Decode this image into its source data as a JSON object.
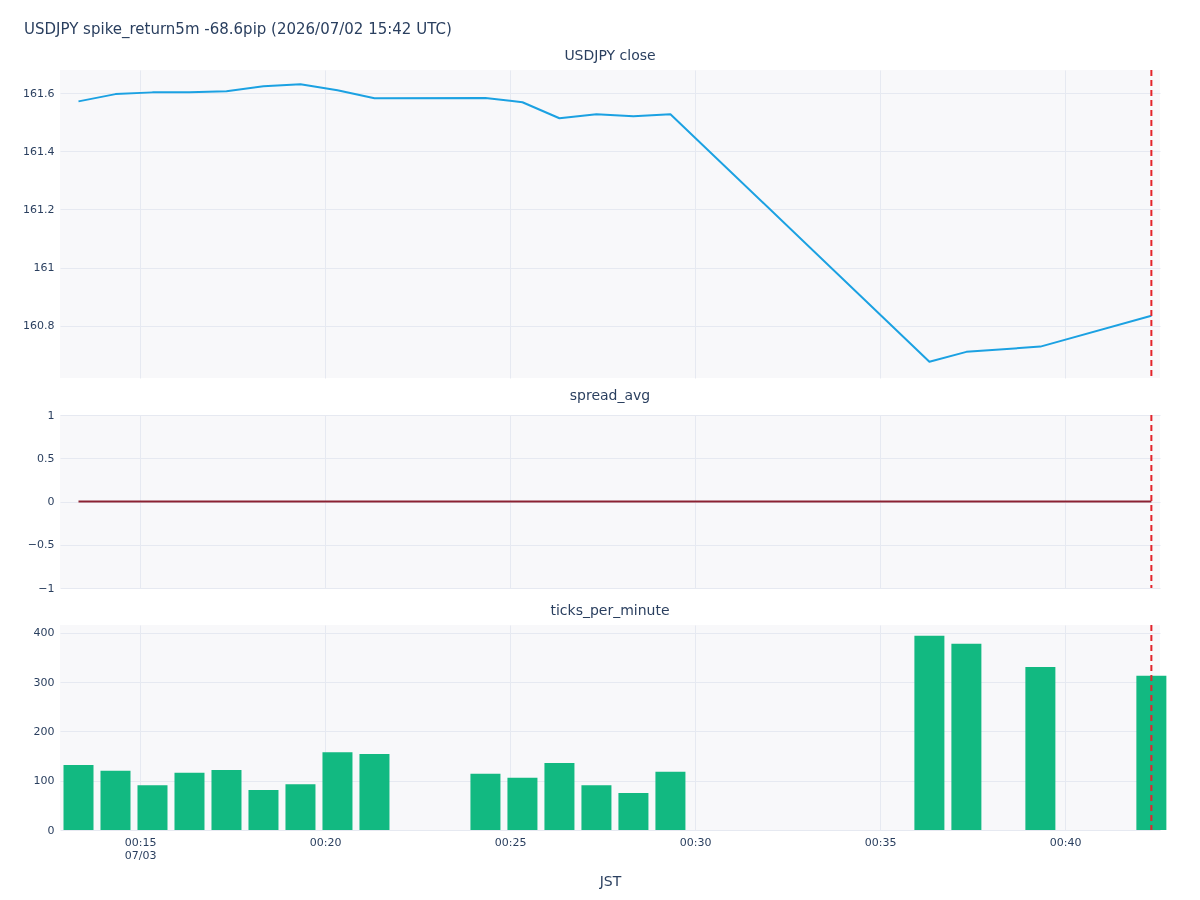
{
  "chart_data": [
    {
      "type": "line",
      "title": "USDJPY spike_return5m -68.6pip (2026/07/02 15:42 UTC)",
      "subtitle": "USDJPY close",
      "color": "#1ba1e2",
      "x": [
        "2026-07-03T00:13:20",
        "2026-07-03T00:14:20",
        "2026-07-03T00:15:20",
        "2026-07-03T00:16:20",
        "2026-07-03T00:17:20",
        "2026-07-03T00:18:20",
        "2026-07-03T00:19:20",
        "2026-07-03T00:20:20",
        "2026-07-03T00:21:20",
        "2026-07-03T00:24:20",
        "2026-07-03T00:25:20",
        "2026-07-03T00:26:20",
        "2026-07-03T00:27:20",
        "2026-07-03T00:28:20",
        "2026-07-03T00:29:20",
        "2026-07-03T00:36:20",
        "2026-07-03T00:37:20",
        "2026-07-03T00:39:20",
        "2026-07-03T00:42:20"
      ],
      "values": [
        161.572,
        161.597,
        161.603,
        161.603,
        161.607,
        161.624,
        161.631,
        161.61,
        161.583,
        161.584,
        161.569,
        161.514,
        161.528,
        161.521,
        161.528,
        160.676,
        160.71,
        160.728,
        160.834
      ],
      "xlim": [
        "2026-07-03T00:12:50",
        "2026-07-03T00:42:34"
      ],
      "ylim": [
        160.62,
        161.68
      ],
      "yticks": [
        160.8,
        161,
        161.2,
        161.4,
        161.6
      ],
      "xticks": [
        {
          "value": "2026-07-03T00:15",
          "label": null
        },
        {
          "value": "2026-07-03T00:20",
          "label": null
        },
        {
          "value": "2026-07-03T00:25",
          "label": null
        },
        {
          "value": "2026-07-03T00:30",
          "label": null
        },
        {
          "value": "2026-07-03T00:35",
          "label": null
        },
        {
          "value": "2026-07-03T00:40",
          "label": null
        }
      ],
      "tick_labels": "y",
      "grid": true,
      "ref_lines": [
        {
          "axis": "x",
          "value": "2026-07-03T00:42:20",
          "color": "#e3242b",
          "line_style": "dashed"
        }
      ]
    },
    {
      "type": "line",
      "subtitle": "spread_avg",
      "color": "#8b2232",
      "x": [
        "2026-07-03T00:13:20",
        "2026-07-03T00:14:20",
        "2026-07-03T00:15:20",
        "2026-07-03T00:16:20",
        "2026-07-03T00:17:20",
        "2026-07-03T00:18:20",
        "2026-07-03T00:19:20",
        "2026-07-03T00:20:20",
        "2026-07-03T00:21:20",
        "2026-07-03T00:24:20",
        "2026-07-03T00:25:20",
        "2026-07-03T00:26:20",
        "2026-07-03T00:27:20",
        "2026-07-03T00:28:20",
        "2026-07-03T00:29:20",
        "2026-07-03T00:36:20",
        "2026-07-03T00:37:20",
        "2026-07-03T00:39:20",
        "2026-07-03T00:42:20"
      ],
      "values": [
        0,
        0,
        0,
        0,
        0,
        0,
        0,
        0,
        0,
        0,
        0,
        0,
        0,
        0,
        0,
        0,
        0,
        0,
        0
      ],
      "xlim": [
        "2026-07-03T00:12:50",
        "2026-07-03T00:42:34"
      ],
      "ylim": [
        -1,
        1
      ],
      "yticks": [
        -1,
        -0.5,
        0,
        0.5,
        1
      ],
      "xticks": [
        {
          "value": "2026-07-03T00:15",
          "label": null
        },
        {
          "value": "2026-07-03T00:20",
          "label": null
        },
        {
          "value": "2026-07-03T00:25",
          "label": null
        },
        {
          "value": "2026-07-03T00:30",
          "label": null
        },
        {
          "value": "2026-07-03T00:35",
          "label": null
        },
        {
          "value": "2026-07-03T00:40",
          "label": null
        }
      ],
      "tick_labels": "y",
      "grid": true,
      "ref_lines": [
        {
          "axis": "x",
          "value": "2026-07-03T00:42:20",
          "color": "#e3242b",
          "line_style": "dashed"
        }
      ]
    },
    {
      "type": "bar",
      "subtitle": "ticks_per_minute",
      "xlabel": "JST",
      "color": "#12b981",
      "x": [
        "2026-07-03T00:13:20",
        "2026-07-03T00:14:20",
        "2026-07-03T00:15:20",
        "2026-07-03T00:16:20",
        "2026-07-03T00:17:20",
        "2026-07-03T00:18:20",
        "2026-07-03T00:19:20",
        "2026-07-03T00:20:20",
        "2026-07-03T00:21:20",
        "2026-07-03T00:24:20",
        "2026-07-03T00:25:20",
        "2026-07-03T00:26:20",
        "2026-07-03T00:27:20",
        "2026-07-03T00:28:20",
        "2026-07-03T00:29:20",
        "2026-07-03T00:36:20",
        "2026-07-03T00:37:20",
        "2026-07-03T00:39:20",
        "2026-07-03T00:42:20"
      ],
      "values": [
        132,
        120,
        91,
        116,
        122,
        81,
        93,
        158,
        154,
        114,
        106,
        136,
        91,
        75,
        118,
        394,
        378,
        331,
        313
      ],
      "xlim": [
        "2026-07-03T00:12:50",
        "2026-07-03T00:42:34"
      ],
      "ylim": [
        0,
        416
      ],
      "yticks": [
        0,
        100,
        200,
        300,
        400
      ],
      "xticks": [
        {
          "value": "2026-07-03T00:15",
          "label": "00:15\n07/03"
        },
        {
          "value": "2026-07-03T00:20",
          "label": "00:20"
        },
        {
          "value": "2026-07-03T00:25",
          "label": "00:25"
        },
        {
          "value": "2026-07-03T00:30",
          "label": "00:30"
        },
        {
          "value": "2026-07-03T00:35",
          "label": "00:35"
        },
        {
          "value": "2026-07-03T00:40",
          "label": "00:40"
        }
      ],
      "grid": true,
      "ref_lines": [
        {
          "axis": "x",
          "value": "2026-07-03T00:42:20",
          "color": "#e3242b",
          "line_style": "dashed"
        }
      ]
    }
  ]
}
